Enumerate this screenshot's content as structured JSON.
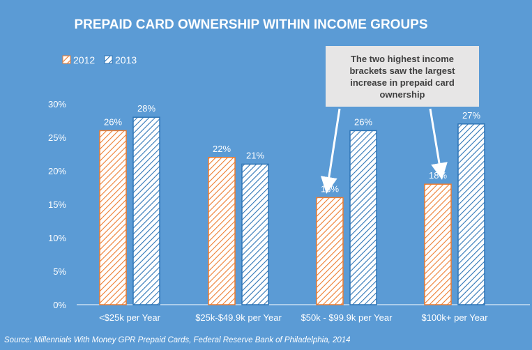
{
  "chart_data": {
    "type": "bar",
    "title": "PREPAID CARD OWNERSHIP WITHIN INCOME GROUPS",
    "categories": [
      "<$25k per Year",
      "$25k-$49.9k per Year",
      "$50k - $99.9k per Year",
      "$100k+ per Year"
    ],
    "series": [
      {
        "name": "2012",
        "values": [
          26,
          22,
          16,
          18
        ],
        "color": "#ed7d31"
      },
      {
        "name": "2013",
        "values": [
          28,
          21,
          26,
          27
        ],
        "color": "#2e75b6"
      }
    ],
    "value_labels": [
      [
        "26%",
        "22%",
        "16%",
        "18%"
      ],
      [
        "28%",
        "21%",
        "26%",
        "27%"
      ]
    ],
    "ylim": [
      0,
      30
    ],
    "y_ticks": [
      0,
      5,
      10,
      15,
      20,
      25,
      30
    ],
    "y_tick_labels": [
      "0%",
      "5%",
      "10%",
      "15%",
      "20%",
      "25%",
      "30%"
    ],
    "legend_position": "top-left",
    "grid": false,
    "annotation": "The two highest income brackets saw the largest increase in prepaid card ownership"
  },
  "source": "Source: Millennials With Money GPR Prepaid Cards, Federal Reserve Bank of Philadelphia, 2014"
}
